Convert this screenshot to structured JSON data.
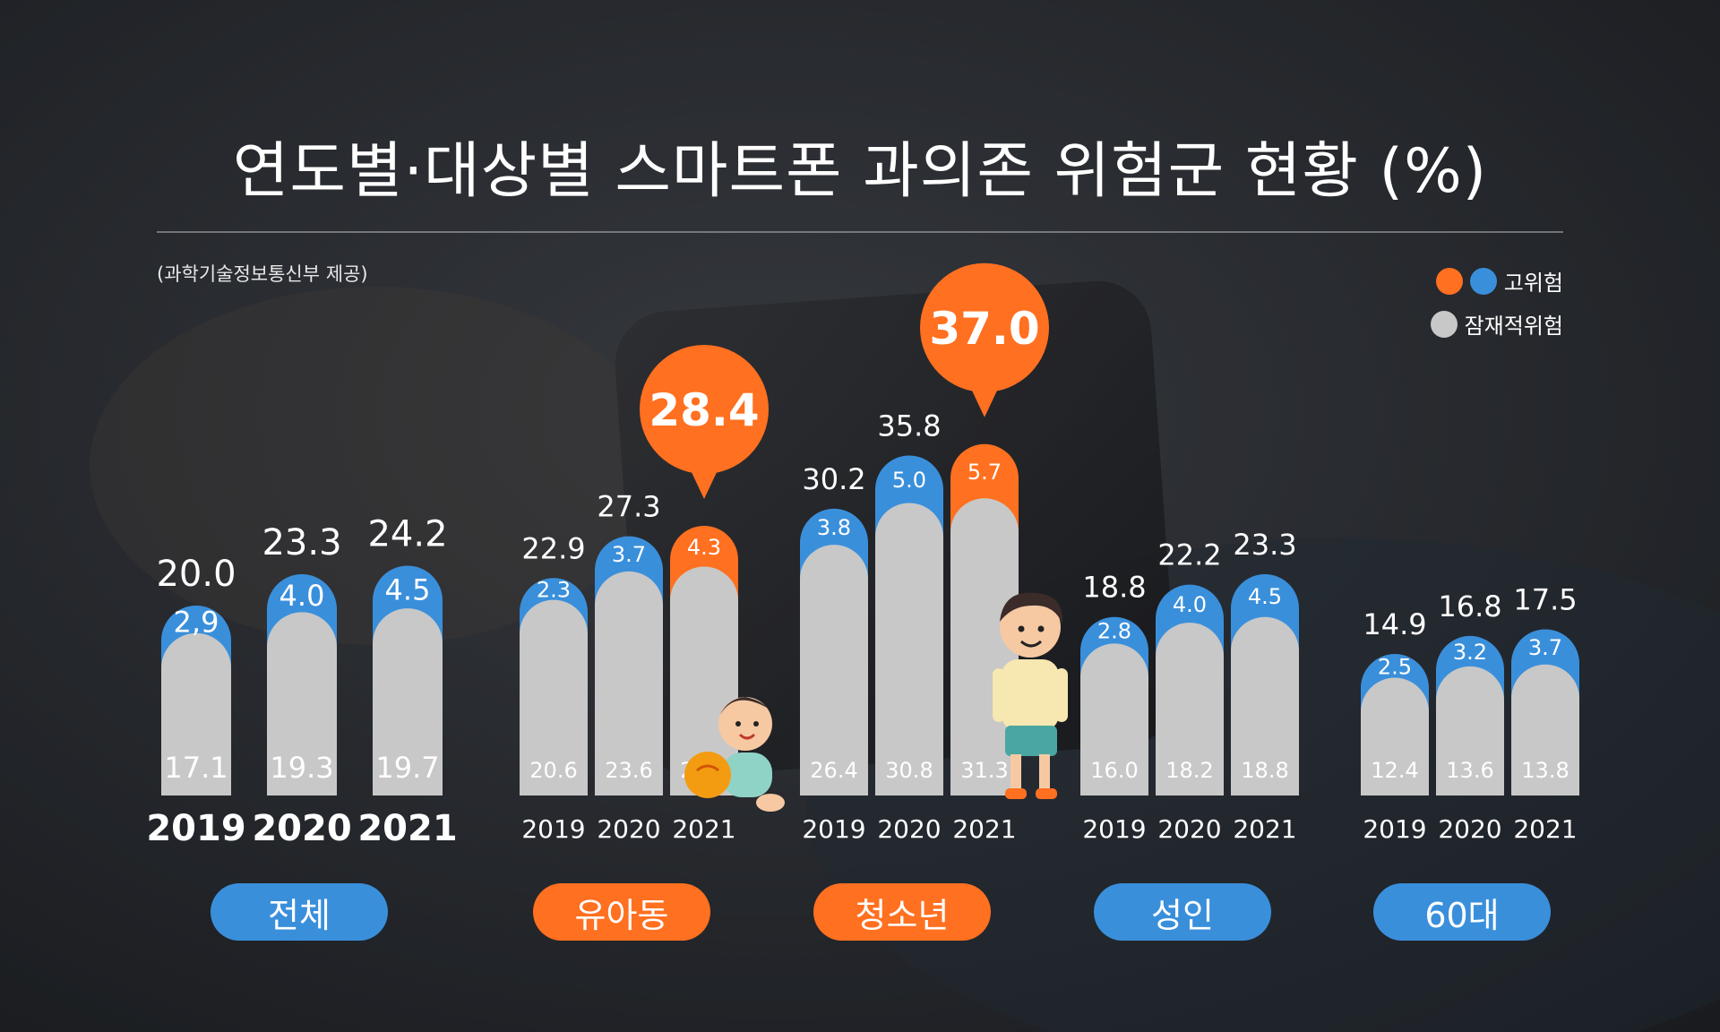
{
  "title": "연도별·대상별 스마트폰 과의존 위험군 현황 (%)",
  "source": "(과학기술정보통신부 제공)",
  "legend": {
    "high_risk": "고위험",
    "potential_risk": "잠재적위험"
  },
  "colors": {
    "high_blue": "#3a8fdb",
    "high_orange": "#ff7020",
    "potential": "#c8c8c8",
    "pill_blue": "#3a8fdb",
    "pill_orange": "#ff7020"
  },
  "chart_data": {
    "type": "bar",
    "stacked": true,
    "groups": [
      {
        "name": "전체",
        "years": [
          "2019",
          "2020",
          "2021"
        ],
        "potential": [
          "17.1",
          "19.3",
          "19.7"
        ],
        "high": [
          "2,9",
          "4.0",
          "4.5"
        ],
        "total": [
          "20.0",
          "23.3",
          "24.2"
        ],
        "accent": "blue"
      },
      {
        "name": "유아동",
        "years": [
          "2019",
          "2020",
          "2021"
        ],
        "potential": [
          "20.6",
          "23.6",
          "24.1"
        ],
        "high": [
          "2.3",
          "3.7",
          "4.3"
        ],
        "total": [
          "22.9",
          "27.3",
          "28.4"
        ],
        "accent": "orange"
      },
      {
        "name": "청소년",
        "years": [
          "2019",
          "2020",
          "2021"
        ],
        "potential": [
          "26.4",
          "30.8",
          "31.3"
        ],
        "high": [
          "3.8",
          "5.0",
          "5.7"
        ],
        "total": [
          "30.2",
          "35.8",
          "37.0"
        ],
        "accent": "orange"
      },
      {
        "name": "성인",
        "years": [
          "2019",
          "2020",
          "2021"
        ],
        "potential": [
          "16.0",
          "18.2",
          "18.8"
        ],
        "high": [
          "2.8",
          "4.0",
          "4.5"
        ],
        "total": [
          "18.8",
          "22.2",
          "23.3"
        ],
        "accent": "blue"
      },
      {
        "name": "60대",
        "years": [
          "2019",
          "2020",
          "2021"
        ],
        "potential": [
          "12.4",
          "13.6",
          "13.8"
        ],
        "high": [
          "2.5",
          "3.2",
          "3.7"
        ],
        "total": [
          "14.9",
          "16.8",
          "17.5"
        ],
        "accent": "blue"
      }
    ],
    "highlight": {
      "유아동": "2021",
      "청소년": "2021"
    },
    "series": [
      {
        "name": "잠재적위험"
      },
      {
        "name": "고위험"
      }
    ]
  }
}
